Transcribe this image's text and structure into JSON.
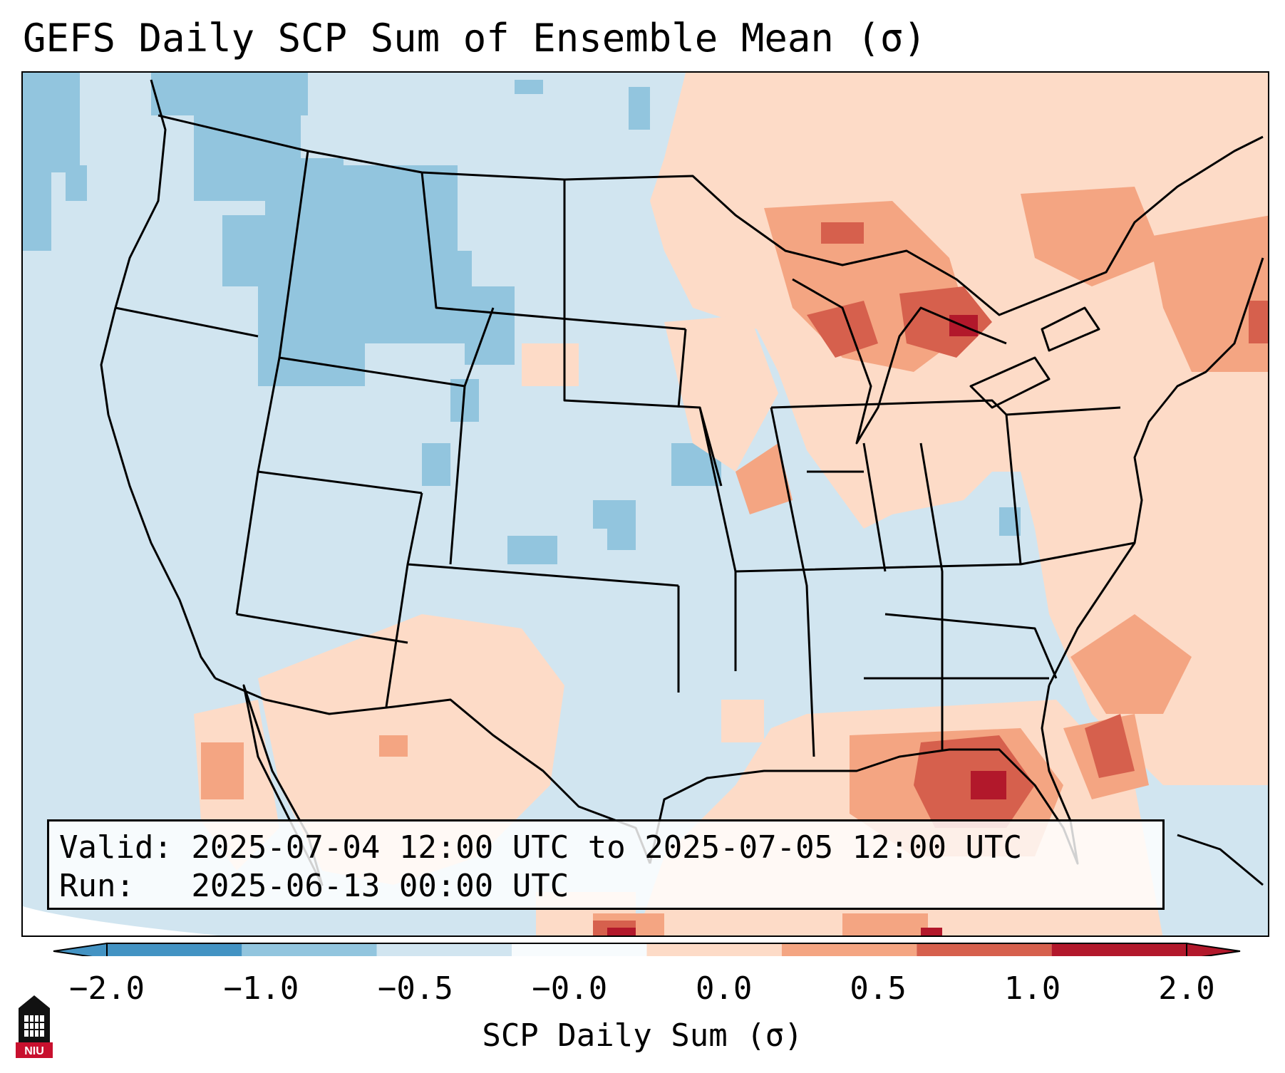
{
  "title": "GEFS Daily SCP Sum of Ensemble Mean (σ)",
  "info": {
    "valid_line": "Valid: 2025-07-04 12:00 UTC to 2025-07-05 12:00 UTC",
    "run_line": "Run:   2025-06-13 00:00 UTC"
  },
  "colorbar": {
    "label": "SCP Daily Sum (σ)",
    "ticks": [
      "−2.0",
      "−1.0",
      "−0.5",
      "−0.0",
      "0.0",
      "0.5",
      "1.0",
      "2.0"
    ],
    "colors": [
      "#4393c3",
      "#92c5de",
      "#d1e5f0",
      "#f7fbfd",
      "#fddbc7",
      "#f4a582",
      "#d6604d",
      "#b2182b"
    ],
    "extend": "both"
  },
  "map": {
    "projection": "Lambert Conformal CONUS",
    "background_color": "#d1e5f0",
    "outline_color": "#000000"
  },
  "logo": {
    "text": "NIU",
    "icon": "university-tower-icon",
    "color": "#c8102e"
  }
}
